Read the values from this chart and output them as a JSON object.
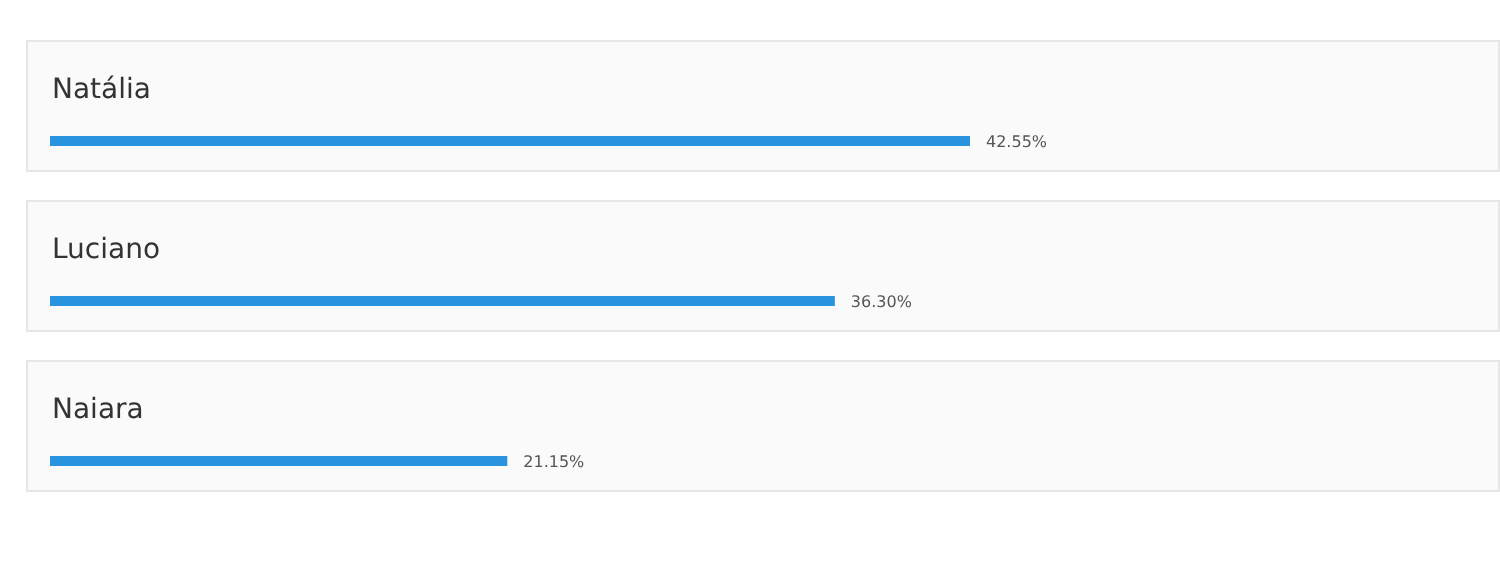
{
  "chart_data": {
    "type": "bar",
    "orientation": "horizontal",
    "categories": [
      "Natália",
      "Luciano",
      "Naiara"
    ],
    "values": [
      42.55,
      36.3,
      21.15
    ],
    "value_labels": [
      "42.55%",
      "36.30%",
      "21.15%"
    ],
    "color": "#2a93e0"
  }
}
